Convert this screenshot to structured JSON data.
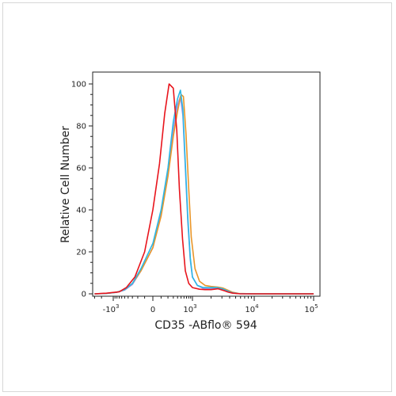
{
  "chart_data": {
    "type": "line",
    "title": "",
    "xlabel": "CD35 -ABflo® 594",
    "ylabel": "Relative Cell Number",
    "ylim": [
      0,
      100
    ],
    "y_ticks": [
      0,
      20,
      40,
      60,
      80,
      100
    ],
    "x_scale": "biexponential",
    "x_ticks": [
      {
        "label": "-10",
        "exp": "3",
        "value": -1000
      },
      {
        "label": "0",
        "exp": "",
        "value": 0
      },
      {
        "label": "10",
        "exp": "3",
        "value": 1000
      },
      {
        "label": "10",
        "exp": "4",
        "value": 10000
      },
      {
        "label": "10",
        "exp": "5",
        "value": 100000
      }
    ],
    "grid": false,
    "legend": "none",
    "series": [
      {
        "color": "#e8141c",
        "x": [
          -3000,
          -1500,
          -700,
          -450,
          -250,
          -100,
          0,
          80,
          150,
          220,
          300,
          380,
          450,
          550,
          650,
          800,
          1000,
          1300,
          1600,
          2000,
          2600,
          3200,
          3800,
          4500,
          6000,
          10000,
          30000,
          100000
        ],
        "y": [
          0,
          0.3,
          1,
          3,
          8,
          20,
          40,
          62,
          86,
          100,
          98,
          78,
          50,
          26,
          11,
          5,
          3,
          2.2,
          2,
          2,
          2.4,
          1.6,
          0.8,
          0.3,
          0,
          0,
          0,
          0
        ]
      },
      {
        "color": "#2ab7e6",
        "x": [
          -3000,
          -1500,
          -800,
          -500,
          -300,
          -150,
          0,
          100,
          200,
          300,
          400,
          480,
          560,
          650,
          760,
          880,
          1000,
          1200,
          1500,
          1900,
          2500,
          3000,
          3600,
          4300,
          5500,
          10000,
          30000,
          100000
        ],
        "y": [
          0,
          0.2,
          0.8,
          2,
          5,
          12,
          24,
          40,
          60,
          82,
          93,
          97,
          88,
          62,
          36,
          17,
          8,
          4,
          3,
          3,
          3,
          2.5,
          1.5,
          0.6,
          0.1,
          0,
          0,
          0
        ]
      },
      {
        "color": "#e8962a",
        "x": [
          -3000,
          -1500,
          -800,
          -500,
          -300,
          -150,
          0,
          100,
          200,
          300,
          400,
          500,
          580,
          680,
          800,
          930,
          1100,
          1300,
          1600,
          2000,
          2600,
          3100,
          3700,
          4400,
          5600,
          10000,
          30000,
          100000
        ],
        "y": [
          0,
          0.2,
          0.8,
          2,
          5,
          11,
          22,
          37,
          56,
          75,
          87,
          95,
          94,
          76,
          50,
          27,
          12,
          6,
          4,
          3.5,
          3.2,
          2.8,
          1.8,
          0.8,
          0.2,
          0,
          0,
          0
        ]
      },
      {
        "color": "#a48fe0",
        "x": [
          -3000,
          -1500,
          -800,
          -500,
          -300,
          -150,
          0,
          100,
          200,
          300,
          400,
          480,
          560,
          650,
          760,
          880,
          1000,
          1200,
          1500,
          1900,
          2500,
          3000,
          3600,
          4300,
          5500,
          10000,
          30000,
          100000
        ],
        "y": [
          0,
          0.2,
          0.7,
          1.8,
          4.5,
          11,
          22,
          38,
          58,
          78,
          90,
          94,
          85,
          60,
          34,
          16,
          8,
          4,
          2.6,
          2.4,
          2.6,
          2.2,
          1.3,
          0.5,
          0.1,
          0,
          0,
          0
        ]
      }
    ]
  }
}
